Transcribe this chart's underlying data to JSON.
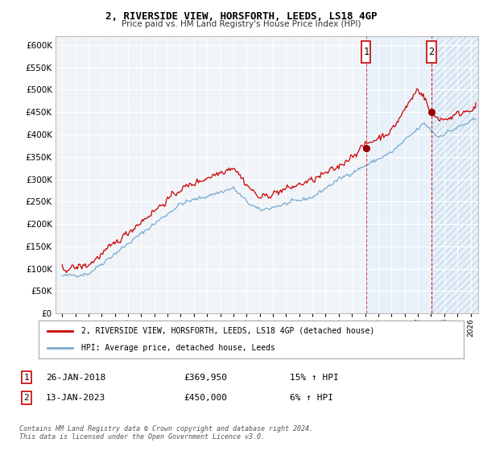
{
  "title1": "2, RIVERSIDE VIEW, HORSFORTH, LEEDS, LS18 4GP",
  "title2": "Price paid vs. HM Land Registry's House Price Index (HPI)",
  "legend1": "2, RIVERSIDE VIEW, HORSFORTH, LEEDS, LS18 4GP (detached house)",
  "legend2": "HPI: Average price, detached house, Leeds",
  "sale1_date": "26-JAN-2018",
  "sale1_price": "£369,950",
  "sale1_hpi": "15% ↑ HPI",
  "sale2_date": "13-JAN-2023",
  "sale2_price": "£450,000",
  "sale2_hpi": "6% ↑ HPI",
  "footer": "Contains HM Land Registry data © Crown copyright and database right 2024.\nThis data is licensed under the Open Government Licence v3.0.",
  "ylim_min": 0,
  "ylim_max": 620000,
  "line_color_property": "#cc0000",
  "line_color_hpi": "#7aaad0",
  "marker_color": "#990000",
  "vline_color": "#cc0000",
  "shading_color": "#ddeeff",
  "background_color": "#f0f4f8"
}
